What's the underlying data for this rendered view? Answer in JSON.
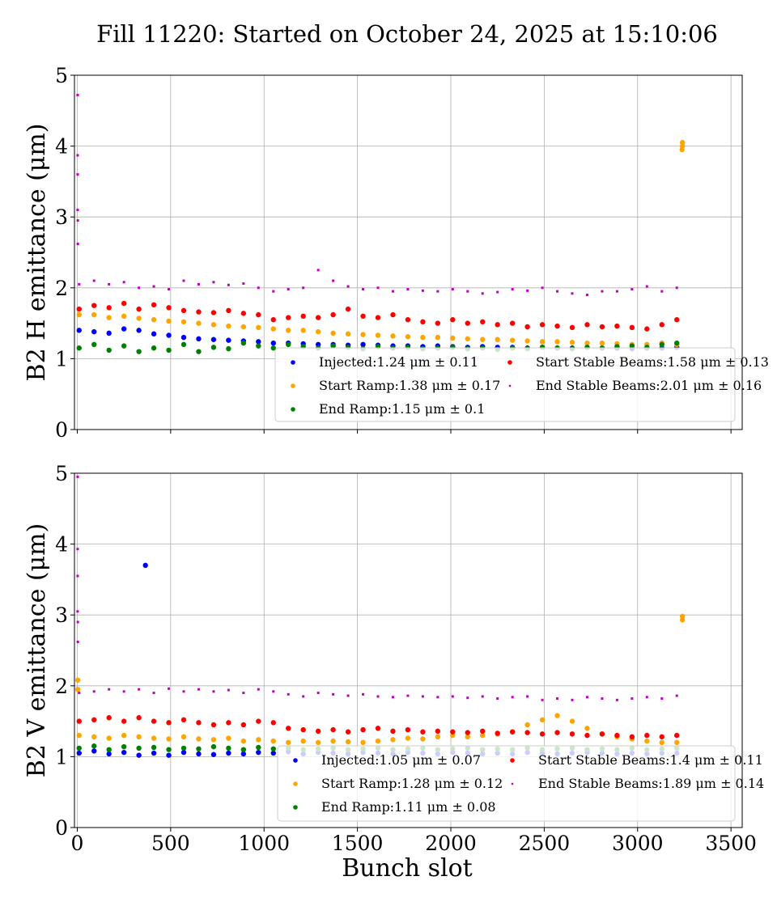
{
  "title": "Fill 11220: Started on October 24, 2025 at 15:10:06",
  "chart_data": [
    {
      "type": "scatter",
      "ylabel": "B2 H emittance (μm)",
      "xlabel": "",
      "xlim": [
        -15,
        3560
      ],
      "ylim": [
        0,
        5
      ],
      "yticks": [
        "0",
        "1",
        "2",
        "3",
        "4",
        "5"
      ],
      "xticks": [
        0,
        500,
        1000,
        1500,
        2000,
        2500,
        3000,
        3500
      ],
      "show_xtick_labels": false,
      "grid": true,
      "legend_position": "lower-right",
      "x": [
        10,
        90,
        170,
        250,
        330,
        410,
        490,
        570,
        650,
        730,
        810,
        890,
        970,
        1050,
        1130,
        1210,
        1290,
        1370,
        1450,
        1530,
        1610,
        1690,
        1770,
        1850,
        1930,
        2010,
        2090,
        2170,
        2250,
        2330,
        2410,
        2490,
        2570,
        2650,
        2730,
        2810,
        2890,
        2970,
        3050,
        3130,
        3210
      ],
      "series": [
        {
          "name": "Injected:1.24 μm ± 0.11",
          "color": "#0000ff",
          "marker": "circle",
          "y": [
            1.4,
            1.38,
            1.36,
            1.42,
            1.4,
            1.35,
            1.33,
            1.3,
            1.28,
            1.27,
            1.26,
            1.25,
            1.24,
            1.22,
            1.22,
            1.21,
            1.2,
            1.2,
            1.19,
            1.2,
            1.19,
            1.18,
            1.18,
            1.17,
            1.18,
            1.17,
            1.16,
            1.17,
            1.16,
            1.16,
            1.15,
            1.16,
            1.15,
            1.15,
            1.16,
            1.15,
            1.15,
            1.14,
            1.15,
            1.15,
            1.16
          ],
          "extra_points": []
        },
        {
          "name": "Start Ramp:1.38 μm ± 0.17",
          "color": "#ffa500",
          "marker": "circle",
          "y": [
            1.62,
            1.62,
            1.58,
            1.6,
            1.57,
            1.55,
            1.53,
            1.52,
            1.5,
            1.48,
            1.46,
            1.45,
            1.44,
            1.42,
            1.4,
            1.4,
            1.38,
            1.36,
            1.35,
            1.34,
            1.33,
            1.32,
            1.31,
            1.3,
            1.3,
            1.29,
            1.28,
            1.27,
            1.27,
            1.26,
            1.25,
            1.24,
            1.24,
            1.23,
            1.22,
            1.22,
            1.21,
            1.2,
            1.2,
            1.22,
            1.2
          ],
          "extra_points": [
            [
              3240,
              4.05
            ],
            [
              3240,
              4.0
            ],
            [
              3238,
              3.95
            ]
          ]
        },
        {
          "name": "End Ramp:1.15 μm ± 0.1",
          "color": "#008000",
          "marker": "circle",
          "y": [
            1.15,
            1.2,
            1.12,
            1.18,
            1.1,
            1.15,
            1.12,
            1.2,
            1.1,
            1.16,
            1.14,
            1.22,
            1.18,
            1.15,
            1.2,
            1.17,
            1.15,
            1.18,
            1.16,
            1.14,
            1.17,
            1.15,
            1.16,
            1.14,
            1.15,
            1.16,
            1.14,
            1.15,
            1.13,
            1.15,
            1.14,
            1.16,
            1.15,
            1.14,
            1.16,
            1.15,
            1.17,
            1.18,
            1.16,
            1.2,
            1.22
          ],
          "extra_points": []
        },
        {
          "name": "Start Stable Beams:1.58 μm ± 0.13",
          "color": "#ff0000",
          "marker": "circle",
          "y": [
            1.7,
            1.75,
            1.72,
            1.78,
            1.7,
            1.76,
            1.72,
            1.68,
            1.66,
            1.65,
            1.68,
            1.64,
            1.62,
            1.55,
            1.58,
            1.6,
            1.58,
            1.62,
            1.7,
            1.6,
            1.58,
            1.62,
            1.55,
            1.52,
            1.5,
            1.55,
            1.5,
            1.52,
            1.48,
            1.5,
            1.45,
            1.48,
            1.46,
            1.44,
            1.48,
            1.45,
            1.46,
            1.44,
            1.42,
            1.48,
            1.55
          ],
          "extra_points": []
        },
        {
          "name": "End Stable Beams:2.01 μm ± 0.16",
          "color": "#bf00bf",
          "marker": "small",
          "y": [
            2.05,
            2.1,
            2.05,
            2.08,
            2.0,
            2.02,
            1.98,
            2.1,
            2.05,
            2.08,
            2.04,
            2.06,
            2.0,
            1.95,
            1.98,
            2.0,
            2.25,
            2.1,
            2.02,
            1.98,
            2.0,
            1.95,
            1.98,
            1.96,
            1.95,
            1.98,
            1.95,
            1.92,
            1.94,
            1.98,
            1.96,
            2.0,
            1.95,
            1.92,
            1.9,
            1.95,
            1.95,
            1.98,
            2.02,
            1.95,
            2.0
          ],
          "extra_points": [
            [
              2,
              4.72
            ],
            [
              2,
              3.87
            ],
            [
              2,
              3.6
            ],
            [
              2,
              3.1
            ],
            [
              3,
              2.95
            ],
            [
              3,
              2.62
            ]
          ]
        }
      ]
    },
    {
      "type": "scatter",
      "ylabel": "B2 V emittance (μm)",
      "xlabel": "Bunch slot",
      "xlim": [
        -15,
        3560
      ],
      "ylim": [
        0,
        5
      ],
      "yticks": [
        "0",
        "1",
        "2",
        "3",
        "4",
        "5"
      ],
      "xticks": [
        0,
        500,
        1000,
        1500,
        2000,
        2500,
        3000,
        3500
      ],
      "show_xtick_labels": true,
      "grid": true,
      "legend_position": "lower-right",
      "x": [
        10,
        90,
        170,
        250,
        330,
        410,
        490,
        570,
        650,
        730,
        810,
        890,
        970,
        1050,
        1130,
        1210,
        1290,
        1370,
        1450,
        1530,
        1610,
        1690,
        1770,
        1850,
        1930,
        2010,
        2090,
        2170,
        2250,
        2330,
        2410,
        2490,
        2570,
        2650,
        2730,
        2810,
        2890,
        2970,
        3050,
        3130,
        3210
      ],
      "series": [
        {
          "name": "Injected:1.05 μm ± 0.07",
          "color": "#0000ff",
          "marker": "circle",
          "y": [
            1.05,
            1.08,
            1.04,
            1.06,
            1.02,
            1.05,
            1.02,
            1.06,
            1.04,
            1.03,
            1.05,
            1.04,
            1.06,
            1.05,
            1.07,
            1.04,
            1.06,
            1.05,
            1.04,
            1.06,
            1.05,
            1.04,
            1.06,
            1.05,
            1.04,
            1.06,
            1.05,
            1.04,
            1.05,
            1.04,
            1.06,
            1.05,
            1.04,
            1.05,
            1.06,
            1.05,
            1.04,
            1.05,
            1.04,
            1.05,
            1.05
          ],
          "extra_points": [
            [
              365,
              3.7
            ]
          ]
        },
        {
          "name": "Start Ramp:1.28 μm ± 0.12",
          "color": "#ffa500",
          "marker": "circle",
          "y": [
            1.3,
            1.28,
            1.26,
            1.3,
            1.28,
            1.26,
            1.25,
            1.28,
            1.25,
            1.24,
            1.26,
            1.22,
            1.24,
            1.22,
            1.2,
            1.22,
            1.2,
            1.22,
            1.21,
            1.2,
            1.22,
            1.24,
            1.26,
            1.25,
            1.28,
            1.3,
            1.28,
            1.3,
            1.32,
            1.35,
            1.45,
            1.52,
            1.58,
            1.5,
            1.4,
            1.32,
            1.28,
            1.25,
            1.22,
            1.2,
            1.2
          ],
          "extra_points": [
            [
              3240,
              2.98
            ],
            [
              3240,
              2.93
            ],
            [
              3,
              2.08
            ],
            [
              3,
              1.95
            ]
          ]
        },
        {
          "name": "End Ramp:1.11 μm ± 0.08",
          "color": "#008000",
          "marker": "circle",
          "y": [
            1.12,
            1.15,
            1.1,
            1.14,
            1.12,
            1.13,
            1.1,
            1.12,
            1.11,
            1.14,
            1.12,
            1.1,
            1.13,
            1.11,
            1.12,
            1.1,
            1.11,
            1.12,
            1.1,
            1.11,
            1.12,
            1.1,
            1.11,
            1.12,
            1.1,
            1.11,
            1.12,
            1.1,
            1.11,
            1.1,
            1.12,
            1.1,
            1.11,
            1.12,
            1.1,
            1.11,
            1.1,
            1.12,
            1.1,
            1.11,
            1.12
          ],
          "extra_points": []
        },
        {
          "name": "Start Stable Beams:1.4 μm ± 0.11",
          "color": "#ff0000",
          "marker": "circle",
          "y": [
            1.5,
            1.52,
            1.55,
            1.5,
            1.55,
            1.5,
            1.48,
            1.52,
            1.48,
            1.45,
            1.48,
            1.45,
            1.5,
            1.48,
            1.4,
            1.38,
            1.36,
            1.38,
            1.35,
            1.38,
            1.4,
            1.36,
            1.38,
            1.35,
            1.36,
            1.35,
            1.34,
            1.36,
            1.33,
            1.35,
            1.34,
            1.32,
            1.34,
            1.32,
            1.3,
            1.32,
            1.3,
            1.28,
            1.3,
            1.28,
            1.3
          ],
          "extra_points": []
        },
        {
          "name": "End Stable Beams:1.89 μm ± 0.14",
          "color": "#bf00bf",
          "marker": "small",
          "y": [
            1.9,
            1.92,
            1.95,
            1.92,
            1.95,
            1.9,
            1.96,
            1.92,
            1.95,
            1.92,
            1.94,
            1.9,
            1.95,
            1.92,
            1.88,
            1.85,
            1.9,
            1.88,
            1.86,
            1.88,
            1.85,
            1.84,
            1.86,
            1.85,
            1.84,
            1.85,
            1.83,
            1.85,
            1.82,
            1.84,
            1.85,
            1.8,
            1.82,
            1.8,
            1.84,
            1.82,
            1.8,
            1.82,
            1.84,
            1.82,
            1.86
          ],
          "extra_points": [
            [
              2,
              4.95
            ],
            [
              2,
              3.93
            ],
            [
              2,
              3.55
            ],
            [
              2,
              3.05
            ],
            [
              3,
              2.9
            ],
            [
              3,
              2.62
            ]
          ]
        }
      ]
    }
  ]
}
